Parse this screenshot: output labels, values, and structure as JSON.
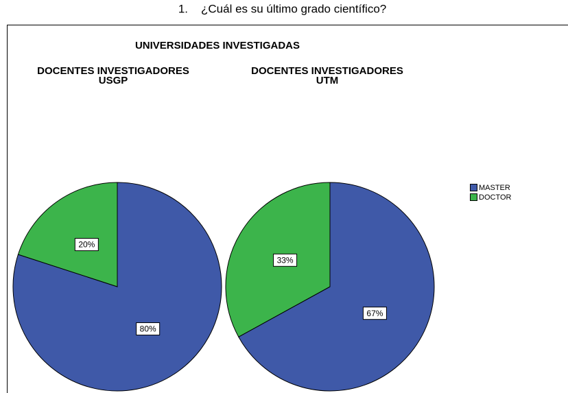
{
  "caption": {
    "number": "1.",
    "text": "¿Cuál es su último grado científico?"
  },
  "super_title": "UNIVERSIDADES INVESTIGADAS",
  "chart_data": [
    {
      "type": "pie",
      "title": [
        "DOCENTES INVESTIGADORES",
        "USGP"
      ],
      "categories": [
        "MASTER",
        "DOCTOR"
      ],
      "values": [
        80,
        20
      ],
      "value_labels": [
        "80%",
        "20%"
      ],
      "colors": [
        "#3f59a8",
        "#3cb44b"
      ]
    },
    {
      "type": "pie",
      "title": [
        "DOCENTES INVESTIGADORES",
        "UTM"
      ],
      "categories": [
        "MASTER",
        "DOCTOR"
      ],
      "values": [
        67,
        33
      ],
      "value_labels": [
        "67%",
        "33%"
      ],
      "colors": [
        "#3f59a8",
        "#3cb44b"
      ]
    }
  ]
}
